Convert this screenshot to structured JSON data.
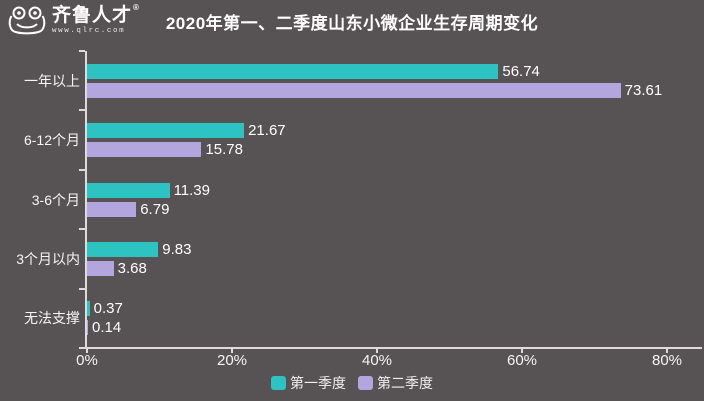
{
  "header": {
    "logo": {
      "brand": "齐鲁人才",
      "registered_mark": "®",
      "website": "www.qlrc.com"
    },
    "title": "2020年第一、二季度山东小微企业生存周期变化"
  },
  "chart_data": {
    "type": "bar",
    "orientation": "horizontal",
    "title": "2020年第一、二季度山东小微企业生存周期变化",
    "categories": [
      "一年以上",
      "6-12个月",
      "3-6个月",
      "3个月以内",
      "无法支撑"
    ],
    "series": [
      {
        "name": "第一季度",
        "color": "#2dc3c3",
        "values": [
          56.74,
          21.67,
          11.39,
          9.83,
          0.37
        ]
      },
      {
        "name": "第二季度",
        "color": "#b3a5de",
        "values": [
          73.61,
          15.78,
          6.79,
          3.68,
          0.14
        ]
      }
    ],
    "xlabel": "",
    "ylabel": "",
    "xlim": [
      0,
      80
    ],
    "x_ticks": [
      "0%",
      "20%",
      "40%",
      "60%",
      "80%"
    ],
    "value_labels": true,
    "grid": false,
    "legend_position": "bottom"
  },
  "colors": {
    "background": "#575253",
    "axis": "#dcdcdc",
    "text": "#f5f5f5",
    "series1": "#2dc3c3",
    "series2": "#b3a5de"
  }
}
